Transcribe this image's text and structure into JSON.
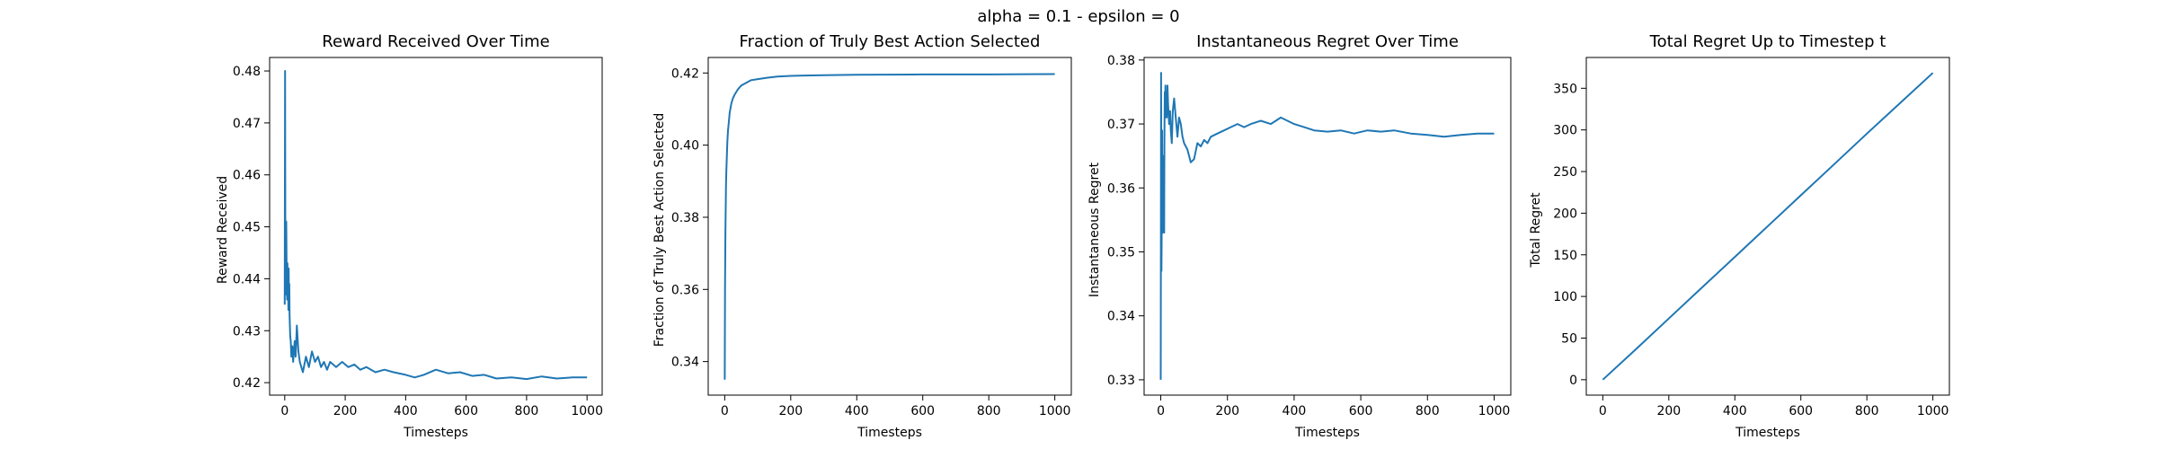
{
  "figure": {
    "suptitle": "alpha = 0.1 - epsilon = 0"
  },
  "chart_data": [
    {
      "type": "line",
      "title": "Reward Received Over Time",
      "xlabel": "Timesteps",
      "ylabel": "Reward Received",
      "xlim": [
        -50,
        1050
      ],
      "ylim": [
        0.4176,
        0.4826
      ],
      "xticks": [
        0,
        200,
        400,
        600,
        800,
        1000
      ],
      "yticks": [
        0.42,
        0.43,
        0.44,
        0.45,
        0.46,
        0.47,
        0.48
      ],
      "ytick_labels": [
        "0.42",
        "0.43",
        "0.44",
        "0.45",
        "0.46",
        "0.47",
        "0.48"
      ],
      "grid": false,
      "series": [
        {
          "x": [
            0,
            1,
            2,
            3,
            4,
            5,
            6,
            7,
            8,
            9,
            10,
            11,
            12,
            13,
            14,
            15,
            16,
            18,
            20,
            22,
            25,
            28,
            30,
            33,
            36,
            40,
            45,
            50,
            55,
            60,
            70,
            80,
            90,
            100,
            110,
            120,
            130,
            140,
            150,
            170,
            190,
            210,
            230,
            250,
            270,
            300,
            330,
            360,
            400,
            430,
            460,
            500,
            540,
            580,
            620,
            660,
            700,
            750,
            800,
            850,
            900,
            950,
            1000
          ],
          "y": [
            0.435,
            0.48,
            0.445,
            0.437,
            0.441,
            0.451,
            0.444,
            0.438,
            0.436,
            0.443,
            0.437,
            0.44,
            0.434,
            0.442,
            0.436,
            0.439,
            0.433,
            0.429,
            0.428,
            0.425,
            0.427,
            0.424,
            0.426,
            0.428,
            0.425,
            0.431,
            0.426,
            0.424,
            0.423,
            0.422,
            0.425,
            0.423,
            0.426,
            0.424,
            0.425,
            0.423,
            0.424,
            0.4225,
            0.424,
            0.423,
            0.424,
            0.423,
            0.4235,
            0.4225,
            0.423,
            0.422,
            0.4225,
            0.422,
            0.4215,
            0.421,
            0.4215,
            0.4225,
            0.4218,
            0.422,
            0.4213,
            0.4215,
            0.4208,
            0.421,
            0.4207,
            0.4212,
            0.4208,
            0.421,
            0.421
          ]
        }
      ]
    },
    {
      "type": "line",
      "title": "Fraction of Truly Best Action Selected",
      "xlabel": "Timesteps",
      "ylabel": "Fraction of Truly Best Action Selected",
      "xlim": [
        -50,
        1050
      ],
      "ylim": [
        0.3307,
        0.4243
      ],
      "xticks": [
        0,
        200,
        400,
        600,
        800,
        1000
      ],
      "yticks": [
        0.34,
        0.36,
        0.38,
        0.4,
        0.42
      ],
      "ytick_labels": [
        "0.34",
        "0.36",
        "0.38",
        "0.40",
        "0.42"
      ],
      "grid": false,
      "series": [
        {
          "x": [
            0,
            1,
            2,
            3,
            4,
            5,
            6,
            8,
            10,
            12,
            15,
            20,
            25,
            30,
            40,
            50,
            60,
            80,
            100,
            130,
            160,
            200,
            300,
            400,
            600,
            800,
            1000
          ],
          "y": [
            0.335,
            0.36,
            0.375,
            0.383,
            0.389,
            0.393,
            0.396,
            0.401,
            0.404,
            0.406,
            0.409,
            0.4115,
            0.413,
            0.414,
            0.4155,
            0.4165,
            0.417,
            0.418,
            0.4183,
            0.4187,
            0.419,
            0.4192,
            0.4194,
            0.4195,
            0.4196,
            0.4196,
            0.4197
          ]
        }
      ]
    },
    {
      "type": "line",
      "title": "Instantaneous Regret Over Time",
      "xlabel": "Timesteps",
      "ylabel": "Instantaneous Regret",
      "xlim": [
        -50,
        1050
      ],
      "ylim": [
        0.3276,
        0.3804
      ],
      "xticks": [
        0,
        200,
        400,
        600,
        800,
        1000
      ],
      "yticks": [
        0.33,
        0.34,
        0.35,
        0.36,
        0.37,
        0.38
      ],
      "ytick_labels": [
        "0.33",
        "0.34",
        "0.35",
        "0.36",
        "0.37",
        "0.38"
      ],
      "grid": false,
      "series": [
        {
          "x": [
            0,
            1,
            2,
            3,
            4,
            5,
            6,
            7,
            8,
            9,
            10,
            11,
            12,
            13,
            14,
            15,
            16,
            18,
            20,
            22,
            25,
            28,
            30,
            33,
            36,
            40,
            45,
            50,
            55,
            60,
            65,
            70,
            80,
            90,
            100,
            110,
            120,
            130,
            140,
            150,
            170,
            190,
            210,
            230,
            250,
            270,
            300,
            330,
            360,
            380,
            400,
            430,
            460,
            500,
            540,
            580,
            620,
            660,
            700,
            750,
            800,
            850,
            900,
            950,
            1000
          ],
          "y": [
            0.33,
            0.378,
            0.347,
            0.356,
            0.369,
            0.353,
            0.362,
            0.365,
            0.359,
            0.364,
            0.353,
            0.368,
            0.375,
            0.371,
            0.376,
            0.372,
            0.374,
            0.371,
            0.376,
            0.373,
            0.37,
            0.372,
            0.369,
            0.367,
            0.372,
            0.374,
            0.371,
            0.368,
            0.371,
            0.37,
            0.368,
            0.367,
            0.366,
            0.364,
            0.3645,
            0.367,
            0.3665,
            0.3675,
            0.367,
            0.368,
            0.3685,
            0.369,
            0.3695,
            0.37,
            0.3695,
            0.37,
            0.3705,
            0.37,
            0.371,
            0.3705,
            0.37,
            0.3695,
            0.369,
            0.3688,
            0.369,
            0.3685,
            0.369,
            0.3688,
            0.369,
            0.3685,
            0.3683,
            0.368,
            0.3683,
            0.3685,
            0.3685
          ]
        }
      ]
    },
    {
      "type": "line",
      "title": "Total Regret Up to Timestep t",
      "xlabel": "Timesteps",
      "ylabel": "Total Regret",
      "xlim": [
        -50,
        1050
      ],
      "ylim": [
        -18.5,
        387
      ],
      "xticks": [
        0,
        200,
        400,
        600,
        800,
        1000
      ],
      "yticks": [
        0,
        50,
        100,
        150,
        200,
        250,
        300,
        350
      ],
      "ytick_labels": [
        "0",
        "50",
        "100",
        "150",
        "200",
        "250",
        "300",
        "350"
      ],
      "grid": false,
      "series": [
        {
          "x": [
            0,
            100,
            200,
            300,
            400,
            500,
            600,
            700,
            800,
            900,
            1000
          ],
          "y": [
            0,
            36.5,
            73.5,
            110.5,
            147.5,
            184.5,
            221.5,
            258.5,
            295.5,
            332,
            368.5
          ]
        }
      ]
    }
  ]
}
